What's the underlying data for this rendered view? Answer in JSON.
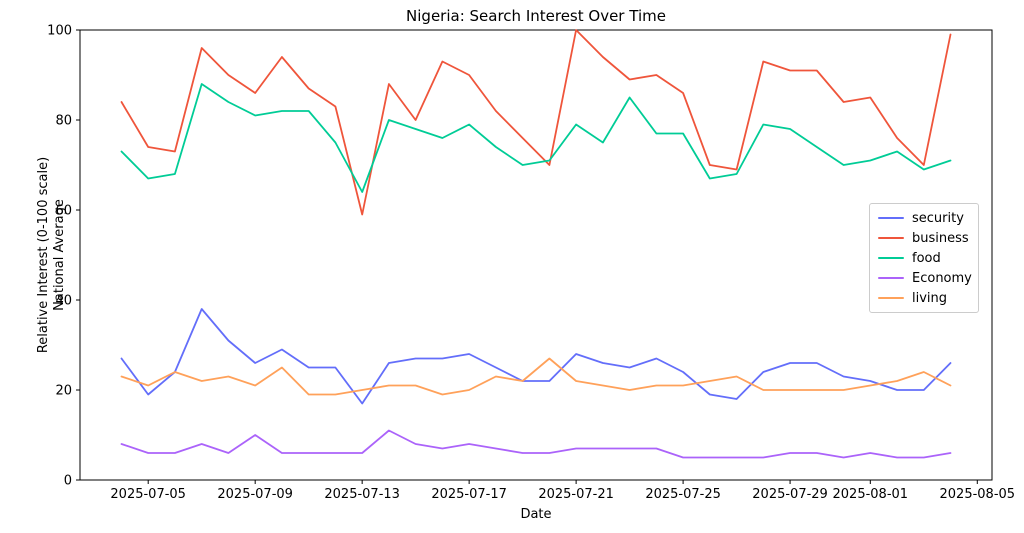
{
  "chart_data": {
    "type": "line",
    "title": "Nigeria: Search Interest Over Time",
    "xlabel": "Date",
    "ylabel": "Relative Interest (0-100 scale)\nNational Average",
    "ylabel_lines": [
      "Relative Interest (0-100 scale)",
      "National Average"
    ],
    "x": [
      "2025-07-04",
      "2025-07-05",
      "2025-07-06",
      "2025-07-07",
      "2025-07-08",
      "2025-07-09",
      "2025-07-10",
      "2025-07-11",
      "2025-07-12",
      "2025-07-13",
      "2025-07-14",
      "2025-07-15",
      "2025-07-16",
      "2025-07-17",
      "2025-07-18",
      "2025-07-19",
      "2025-07-20",
      "2025-07-21",
      "2025-07-22",
      "2025-07-23",
      "2025-07-24",
      "2025-07-25",
      "2025-07-26",
      "2025-07-27",
      "2025-07-28",
      "2025-07-29",
      "2025-07-30",
      "2025-07-31",
      "2025-08-01",
      "2025-08-02",
      "2025-08-03",
      "2025-08-04"
    ],
    "series": [
      {
        "name": "security",
        "color": "#636EFA",
        "values": [
          27,
          19,
          24,
          38,
          31,
          26,
          29,
          25,
          25,
          17,
          26,
          27,
          27,
          28,
          25,
          22,
          22,
          28,
          26,
          25,
          27,
          24,
          19,
          18,
          24,
          26,
          26,
          23,
          22,
          20,
          20,
          26
        ]
      },
      {
        "name": "business",
        "color": "#EF553B",
        "values": [
          84,
          74,
          73,
          96,
          90,
          86,
          94,
          87,
          83,
          59,
          88,
          80,
          93,
          90,
          82,
          76,
          70,
          100,
          94,
          89,
          90,
          86,
          70,
          69,
          93,
          91,
          91,
          84,
          85,
          76,
          70,
          99
        ]
      },
      {
        "name": "food",
        "color": "#00CC96",
        "values": [
          73,
          67,
          68,
          88,
          84,
          81,
          82,
          82,
          75,
          64,
          80,
          78,
          76,
          79,
          74,
          70,
          71,
          79,
          75,
          85,
          77,
          77,
          67,
          68,
          79,
          78,
          74,
          70,
          71,
          73,
          69,
          71
        ]
      },
      {
        "name": "Economy",
        "color": "#AB63FA",
        "values": [
          8,
          6,
          6,
          8,
          6,
          10,
          6,
          6,
          6,
          6,
          11,
          8,
          7,
          8,
          7,
          6,
          6,
          7,
          7,
          7,
          7,
          5,
          5,
          5,
          5,
          6,
          6,
          5,
          6,
          5,
          5,
          6
        ]
      },
      {
        "name": "living",
        "color": "#FFA15A",
        "values": [
          23,
          21,
          24,
          22,
          23,
          21,
          25,
          19,
          19,
          20,
          21,
          21,
          19,
          20,
          23,
          22,
          27,
          22,
          21,
          20,
          21,
          21,
          22,
          23,
          20,
          20,
          20,
          20,
          21,
          22,
          24,
          21
        ]
      }
    ],
    "xticks": [
      {
        "label": "2025-07-05",
        "day": 1
      },
      {
        "label": "2025-07-09",
        "day": 5
      },
      {
        "label": "2025-07-13",
        "day": 9
      },
      {
        "label": "2025-07-17",
        "day": 13
      },
      {
        "label": "2025-07-21",
        "day": 17
      },
      {
        "label": "2025-07-25",
        "day": 21
      },
      {
        "label": "2025-07-29",
        "day": 25
      },
      {
        "label": "2025-08-01",
        "day": 28
      },
      {
        "label": "2025-08-05",
        "day": 32
      }
    ],
    "yticks": [
      "0",
      "20",
      "40",
      "60",
      "80",
      "100"
    ],
    "ylim": [
      0,
      100
    ],
    "xlim_days": [
      -1.55,
      32.55
    ],
    "grid": false,
    "legend_position": "center-right"
  }
}
